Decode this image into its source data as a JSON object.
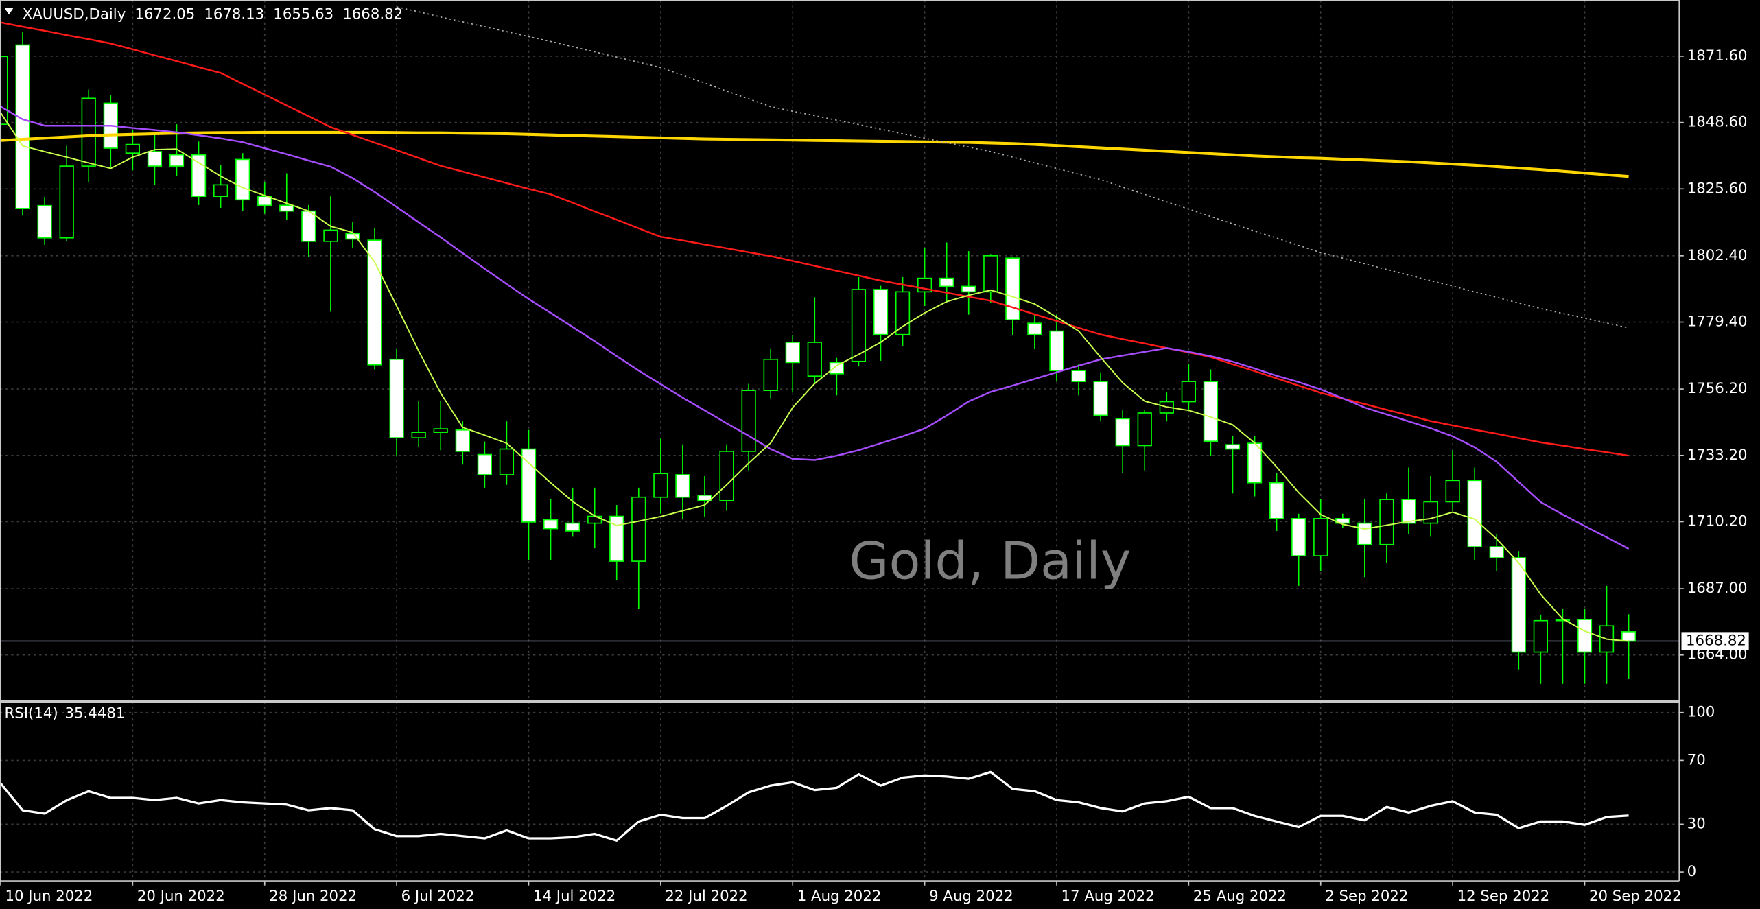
{
  "chart_data": [
    {
      "type": "candlestick",
      "title": "XAUUSD,Daily",
      "watermark": "Gold, Daily",
      "categories": [
        "10 Jun 2022",
        null,
        null,
        null,
        null,
        null,
        "20 Jun 2022",
        null,
        null,
        null,
        null,
        null,
        "28 Jun 2022",
        null,
        null,
        null,
        null,
        null,
        "6 Jul 2022",
        null,
        null,
        null,
        null,
        null,
        "14 Jul 2022",
        null,
        null,
        null,
        null,
        null,
        "22 Jul 2022",
        null,
        null,
        null,
        null,
        null,
        "1 Aug 2022",
        null,
        null,
        null,
        null,
        null,
        "9 Aug 2022",
        null,
        null,
        null,
        null,
        null,
        "17 Aug 2022",
        null,
        null,
        null,
        null,
        null,
        "25 Aug 2022",
        null,
        null,
        null,
        null,
        null,
        "2 Sep 2022",
        null,
        null,
        null,
        null,
        null,
        "12 Sep 2022",
        null,
        null,
        null,
        null,
        null,
        "20 Sep 2022",
        null,
        null
      ],
      "open": [
        1848.0,
        1875.5,
        1819.8,
        1808.6,
        1833.5,
        1855.3,
        1838.0,
        1838.5,
        1837.4,
        1837.4,
        1823.0,
        1835.8,
        1823.0,
        1819.9,
        1817.9,
        1807.4,
        1810.1,
        1807.8,
        1766.5,
        1739.3,
        1741.2,
        1742.0,
        1733.5,
        1726.5,
        1735.4,
        1710.9,
        1709.7,
        1709.7,
        1712.1,
        1696.5,
        1718.7,
        1726.5,
        1719.4,
        1717.5,
        1734.6,
        1755.7,
        1772.4,
        1760.7,
        1765.4,
        1765.8,
        1790.7,
        1775.1,
        1789.9,
        1794.6,
        1791.8,
        1789.9,
        1801.6,
        1779.0,
        1776.3,
        1762.6,
        1758.8,
        1745.9,
        1736.6,
        1747.9,
        1751.8,
        1758.8,
        1736.9,
        1737.4,
        1723.7,
        1711.3,
        1698.4,
        1711.3,
        1709.7,
        1702.3,
        1717.9,
        1709.7,
        1717.1,
        1724.5,
        1701.5,
        1697.7,
        1665.0,
        1675.9,
        1676.3,
        1665.0,
        1672.05
      ],
      "high": [
        1875.0,
        1879.9,
        1822.8,
        1840.5,
        1860.0,
        1858.0,
        1846.0,
        1845.0,
        1848.0,
        1842.0,
        1834.0,
        1838.0,
        1828.0,
        1831.0,
        1820.0,
        1823.0,
        1814.0,
        1812.0,
        1770.0,
        1752.0,
        1752.0,
        1745.0,
        1738.0,
        1745.0,
        1742.0,
        1718.0,
        1722.0,
        1722.0,
        1716.0,
        1722.0,
        1739.0,
        1737.0,
        1726.0,
        1737.0,
        1758.0,
        1770.0,
        1775.0,
        1788.0,
        1767.0,
        1795.0,
        1792.0,
        1795.0,
        1805.0,
        1807.0,
        1804.0,
        1803.0,
        1802.0,
        1782.0,
        1782.0,
        1765.0,
        1762.0,
        1749.0,
        1749.0,
        1755.0,
        1765.0,
        1763.0,
        1740.0,
        1740.0,
        1727.0,
        1713.0,
        1718.0,
        1713.0,
        1718.0,
        1720.0,
        1729.0,
        1726.0,
        1735.0,
        1729.0,
        1706.0,
        1700.0,
        1678.0,
        1680.0,
        1680.0,
        1688.0,
        1678.13
      ],
      "low": [
        1825.0,
        1816.3,
        1806.2,
        1807.4,
        1828.0,
        1833.0,
        1832.0,
        1827.0,
        1830.0,
        1820.0,
        1819.0,
        1818.0,
        1817.0,
        1815.0,
        1802.0,
        1783.0,
        1805.0,
        1763.0,
        1733.0,
        1736.0,
        1735.0,
        1730.0,
        1722.0,
        1723.0,
        1697.0,
        1697.0,
        1705.0,
        1701.0,
        1690.0,
        1680.0,
        1713.0,
        1711.0,
        1712.0,
        1714.0,
        1728.0,
        1753.0,
        1755.0,
        1758.0,
        1754.0,
        1764.0,
        1766.0,
        1771.0,
        1785.0,
        1786.0,
        1782.0,
        1786.0,
        1775.0,
        1770.0,
        1759.0,
        1754.0,
        1745.0,
        1727.0,
        1728.0,
        1745.0,
        1749.0,
        1733.0,
        1720.0,
        1719.0,
        1707.0,
        1688.0,
        1693.0,
        1708.0,
        1691.0,
        1696.0,
        1706.0,
        1705.0,
        1714.0,
        1697.0,
        1693.0,
        1659.0,
        1654.0,
        1654.0,
        1654.0,
        1654.0,
        1655.63
      ],
      "close": [
        1871.5,
        1818.8,
        1808.6,
        1833.5,
        1857.0,
        1839.7,
        1841.0,
        1833.5,
        1833.5,
        1823.0,
        1827.0,
        1821.8,
        1819.9,
        1817.9,
        1807.4,
        1811.3,
        1808.2,
        1764.6,
        1739.3,
        1741.2,
        1742.4,
        1734.6,
        1726.5,
        1735.4,
        1710.1,
        1707.8,
        1707.0,
        1712.1,
        1696.5,
        1718.7,
        1726.9,
        1718.7,
        1717.5,
        1734.6,
        1755.7,
        1766.5,
        1765.4,
        1772.4,
        1761.5,
        1790.7,
        1775.1,
        1789.9,
        1794.6,
        1791.8,
        1789.9,
        1802.4,
        1780.2,
        1775.1,
        1762.6,
        1758.8,
        1747.1,
        1736.6,
        1747.9,
        1751.8,
        1758.8,
        1738.1,
        1735.4,
        1723.7,
        1711.3,
        1698.4,
        1711.3,
        1709.7,
        1702.3,
        1717.9,
        1709.7,
        1717.1,
        1724.5,
        1701.5,
        1697.7,
        1665.0,
        1675.9,
        1676.3,
        1665.0,
        1674.1,
        1668.82
      ],
      "up_color": "#000000",
      "down_color": "#ffffff",
      "wick_color": "#00ff00",
      "series": [
        {
          "color": "#ffd700",
          "line_width": 2.5,
          "values": [
            1842.4,
            1842.8,
            1843.2,
            1843.6,
            1844.0,
            1844.3,
            1844.5,
            1844.7,
            1844.9,
            1845.0,
            1845.1,
            1845.1,
            1845.2,
            1845.2,
            1845.2,
            1845.2,
            1845.2,
            1845.2,
            1845.1,
            1845.0,
            1845.0,
            1844.9,
            1844.8,
            1844.7,
            1844.5,
            1844.3,
            1844.1,
            1843.9,
            1843.7,
            1843.5,
            1843.3,
            1843.1,
            1842.9,
            1842.8,
            1842.7,
            1842.6,
            1842.5,
            1842.4,
            1842.3,
            1842.2,
            1842.1,
            1842.0,
            1841.9,
            1841.8,
            1841.7,
            1841.5,
            1841.3,
            1841.0,
            1840.6,
            1840.2,
            1839.8,
            1839.4,
            1839.0,
            1838.6,
            1838.2,
            1837.8,
            1837.4,
            1837.0,
            1836.7,
            1836.4,
            1836.2,
            1835.9,
            1835.6,
            1835.3,
            1835.0,
            1834.6,
            1834.2,
            1833.8,
            1833.3,
            1832.8,
            1832.3,
            1831.7,
            1831.1,
            1830.5,
            1829.9
          ]
        },
        {
          "color": "#ff1a1a",
          "line_width": 1.5,
          "values": [
            1883.3,
            1881.8,
            1880.4,
            1878.9,
            1877.5,
            1876.0,
            1874.0,
            1871.9,
            1869.9,
            1867.8,
            1865.8,
            1862.0,
            1858.3,
            1854.5,
            1850.8,
            1847.0,
            1844.3,
            1841.6,
            1839.0,
            1836.3,
            1833.6,
            1831.6,
            1829.6,
            1827.6,
            1825.6,
            1823.7,
            1820.8,
            1817.8,
            1814.9,
            1811.9,
            1809.0,
            1807.7,
            1806.3,
            1805.0,
            1803.6,
            1802.3,
            1800.6,
            1798.9,
            1797.2,
            1795.5,
            1793.8,
            1792.4,
            1791.0,
            1789.6,
            1788.2,
            1786.8,
            1784.5,
            1782.1,
            1779.8,
            1777.4,
            1775.1,
            1773.5,
            1772.0,
            1770.4,
            1768.9,
            1767.3,
            1764.8,
            1762.4,
            1759.9,
            1757.4,
            1754.9,
            1752.9,
            1751.0,
            1749.0,
            1747.1,
            1745.1,
            1743.6,
            1742.1,
            1740.7,
            1739.2,
            1737.7,
            1736.6,
            1735.4,
            1734.3,
            1733.1
          ]
        },
        {
          "color": "#b0b0b0",
          "line_width": 1,
          "style": "dotted",
          "values": [
            null,
            null,
            null,
            null,
            null,
            null,
            null,
            null,
            null,
            null,
            null,
            null,
            null,
            null,
            null,
            null,
            null,
            null,
            1888.7,
            1887.0,
            1885.2,
            1883.5,
            1881.8,
            1880.1,
            1878.4,
            1876.7,
            1874.9,
            1873.1,
            1871.3,
            1869.5,
            1867.7,
            1865.0,
            1862.3,
            1859.5,
            1856.8,
            1854.1,
            1852.5,
            1851.0,
            1849.4,
            1847.9,
            1846.3,
            1844.7,
            1843.2,
            1841.6,
            1840.1,
            1838.5,
            1836.6,
            1834.6,
            1832.7,
            1830.7,
            1828.8,
            1826.2,
            1823.7,
            1821.1,
            1818.6,
            1816.0,
            1813.5,
            1811.0,
            1808.5,
            1806.0,
            1803.5,
            1801.6,
            1799.6,
            1797.7,
            1795.7,
            1793.8,
            1791.9,
            1789.9,
            1788.0,
            1786.0,
            1784.1,
            1782.4,
            1780.8,
            1779.1,
            1777.4
          ]
        },
        {
          "color": "#a64dff",
          "line_width": 1.5,
          "values": [
            1854.1,
            1849.7,
            1847.5,
            1847.5,
            1847.5,
            1847.5,
            1846.7,
            1846.0,
            1845.2,
            1844.2,
            1843.1,
            1841.8,
            1839.7,
            1837.6,
            1835.4,
            1833.3,
            1829.3,
            1824.5,
            1819.3,
            1814.0,
            1808.8,
            1803.3,
            1797.9,
            1792.6,
            1787.4,
            1782.6,
            1777.7,
            1772.8,
            1767.6,
            1762.6,
            1757.9,
            1753.2,
            1748.8,
            1744.3,
            1740.0,
            1735.4,
            1732.0,
            1731.6,
            1733.1,
            1735.0,
            1737.4,
            1739.8,
            1742.5,
            1747.0,
            1751.9,
            1755.2,
            1757.4,
            1759.7,
            1762.0,
            1764.3,
            1766.5,
            1767.8,
            1769.1,
            1770.4,
            1769.1,
            1767.6,
            1765.7,
            1763.3,
            1760.8,
            1758.6,
            1756.1,
            1753.0,
            1749.8,
            1747.4,
            1745.0,
            1742.6,
            1739.8,
            1736.0,
            1731.0,
            1724.0,
            1717.0,
            1712.7,
            1708.7,
            1704.8,
            1700.8
          ]
        },
        {
          "color": "#c8ff4d",
          "line_width": 1.2,
          "values": [
            1852.0,
            1840.5,
            1838.5,
            1836.6,
            1834.6,
            1832.7,
            1836.6,
            1839.2,
            1839.4,
            1834.7,
            1830.0,
            1826.0,
            1823.3,
            1820.6,
            1817.9,
            1812.6,
            1810.5,
            1800.2,
            1785.0,
            1769.4,
            1754.8,
            1742.9,
            1740.2,
            1737.4,
            1730.6,
            1723.7,
            1717.2,
            1712.2,
            1708.9,
            1710.4,
            1712.0,
            1714.0,
            1716.0,
            1723.0,
            1730.5,
            1737.5,
            1749.8,
            1758.1,
            1764.3,
            1768.2,
            1772.4,
            1777.9,
            1782.6,
            1786.5,
            1788.7,
            1790.5,
            1788.2,
            1785.7,
            1781.1,
            1776.3,
            1767.2,
            1758.4,
            1752.0,
            1750.0,
            1748.8,
            1746.5,
            1743.8,
            1737.5,
            1729.2,
            1720.3,
            1712.7,
            1709.3,
            1707.7,
            1709.0,
            1710.3,
            1711.3,
            1713.5,
            1711.1,
            1704.2,
            1696.0,
            1685.0,
            1676.5,
            1672.3,
            1669.5,
            1668.8
          ]
        }
      ],
      "ylim": [
        1648.3,
        1890.3
      ],
      "yticks": [
        {
          "value": 1664,
          "label": "1664.00"
        },
        {
          "value": 1687,
          "label": "1687.00"
        },
        {
          "value": 1710.2,
          "label": "1710.20"
        },
        {
          "value": 1733.2,
          "label": "1733.20"
        },
        {
          "value": 1756.2,
          "label": "1756.20"
        },
        {
          "value": 1779.4,
          "label": "1779.40"
        },
        {
          "value": 1802.4,
          "label": "1802.40"
        },
        {
          "value": 1825.6,
          "label": "1825.60"
        },
        {
          "value": 1848.6,
          "label": "1848.60"
        },
        {
          "value": 1871.6,
          "label": "1871.60"
        }
      ],
      "grid": true
    },
    {
      "type": "line",
      "title": "RSI(14)",
      "color": "#ffffff",
      "line_width": 2,
      "values": [
        55.6,
        38.7,
        36.6,
        45.0,
        50.7,
        46.5,
        46.5,
        45.1,
        46.5,
        43.0,
        45.1,
        43.7,
        43.0,
        42.3,
        38.7,
        40.1,
        38.7,
        26.8,
        22.5,
        22.5,
        23.9,
        22.5,
        21.1,
        26.1,
        21.1,
        21.1,
        21.8,
        23.9,
        19.7,
        31.7,
        35.9,
        33.8,
        33.8,
        41.5,
        50.0,
        54.2,
        56.3,
        51.4,
        52.8,
        61.3,
        54.2,
        59.2,
        60.6,
        59.9,
        58.5,
        62.7,
        52.1,
        50.7,
        45.1,
        43.7,
        40.1,
        38.0,
        43.0,
        44.4,
        47.2,
        40.1,
        40.1,
        35.2,
        31.7,
        28.2,
        35.2,
        35.2,
        32.4,
        40.8,
        37.3,
        41.5,
        44.4,
        37.3,
        35.9,
        27.5,
        31.7,
        31.7,
        29.6,
        34.5,
        35.4481
      ],
      "ylim": [
        -5.6,
        105.6
      ],
      "yticks": [
        0,
        30,
        70,
        100
      ],
      "grid": true
    }
  ]
}
